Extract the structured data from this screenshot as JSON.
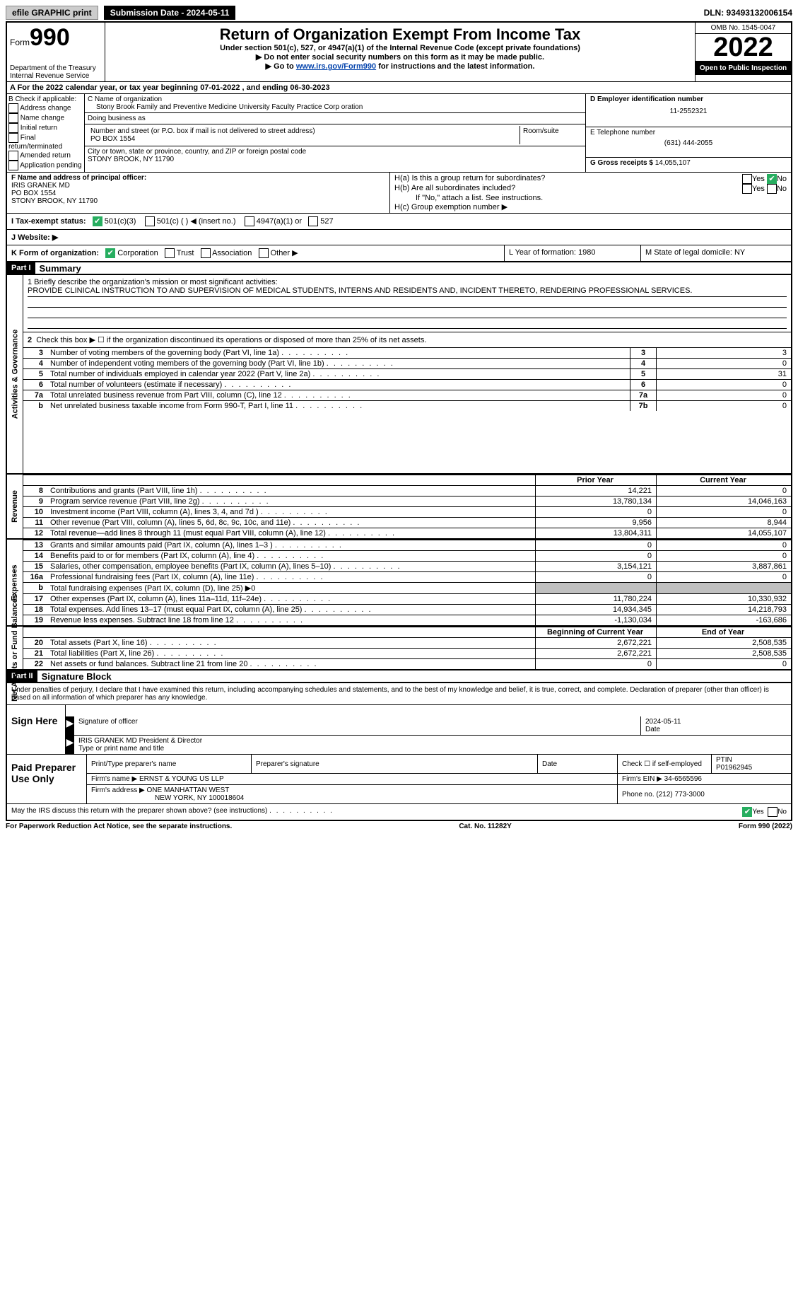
{
  "topbar": {
    "efile": "efile GRAPHIC print",
    "submission": "Submission Date - 2024-05-11",
    "dln": "DLN: 93493132006154"
  },
  "header": {
    "form": "Form",
    "form_no": "990",
    "dept": "Department of the Treasury\nInternal Revenue Service",
    "title": "Return of Organization Exempt From Income Tax",
    "sub": "Under section 501(c), 527, or 4947(a)(1) of the Internal Revenue Code (except private foundations)",
    "note1": "▶ Do not enter social security numbers on this form as it may be made public.",
    "note2_pre": "▶ Go to ",
    "note2_link": "www.irs.gov/Form990",
    "note2_post": " for instructions and the latest information.",
    "omb": "OMB No. 1545-0047",
    "year": "2022",
    "open": "Open to Public Inspection"
  },
  "row_a": "A For the 2022 calendar year, or tax year beginning 07-01-2022    , and ending 06-30-2023",
  "col_b": {
    "label": "B Check if applicable:",
    "items": [
      "Address change",
      "Name change",
      "Initial return",
      "Final return/terminated",
      "Amended return",
      "Application pending"
    ]
  },
  "col_c": {
    "name_label": "C Name of organization",
    "name": "Stony Brook Family and Preventive Medicine University Faculty Practice Corp oration",
    "dba_label": "Doing business as",
    "dba": "",
    "street_label": "Number and street (or P.O. box if mail is not delivered to street address)",
    "room_label": "Room/suite",
    "street": "PO BOX 1554",
    "city_label": "City or town, state or province, country, and ZIP or foreign postal code",
    "city": "STONY BROOK, NY  11790"
  },
  "col_d": {
    "ein_label": "D Employer identification number",
    "ein": "11-2552321",
    "phone_label": "E Telephone number",
    "phone": "(631) 444-2055",
    "gross_label": "G Gross receipts $",
    "gross": "14,055,107"
  },
  "fg": {
    "f_label": "F Name and address of principal officer:",
    "f_name": "IRIS GRANEK MD",
    "f_addr1": "PO BOX 1554",
    "f_addr2": "STONY BROOK, NY  11790",
    "ha": "H(a)  Is this a group return for subordinates?",
    "hb": "H(b)  Are all subordinates included?",
    "hb_note": "If \"No,\" attach a list. See instructions.",
    "hc": "H(c)  Group exemption number ▶",
    "yes": "Yes",
    "no": "No"
  },
  "i": {
    "label": "I  Tax-exempt status:",
    "c3": "501(c)(3)",
    "c": "501(c) (  ) ◀ (insert no.)",
    "a1": "4947(a)(1) or",
    "s527": "527"
  },
  "j": {
    "label": "J  Website: ▶",
    "val": ""
  },
  "k": {
    "label": "K Form of organization:",
    "corp": "Corporation",
    "trust": "Trust",
    "assoc": "Association",
    "other": "Other ▶",
    "l": "L Year of formation: 1980",
    "m": "M State of legal domicile: NY"
  },
  "part1": {
    "label": "Part I",
    "title": "Summary",
    "mission_label": "1  Briefly describe the organization's mission or most significant activities:",
    "mission": "PROVIDE CLINICAL INSTRUCTION TO AND SUPERVISION OF MEDICAL STUDENTS, INTERNS AND RESIDENTS AND, INCIDENT THERETO, RENDERING PROFESSIONAL SERVICES.",
    "line2": "Check this box ▶ ☐ if the organization discontinued its operations or disposed of more than 25% of its net assets.",
    "rows_gov": [
      {
        "n": "3",
        "d": "Number of voting members of the governing body (Part VI, line 1a)",
        "b": "3",
        "v": "3"
      },
      {
        "n": "4",
        "d": "Number of independent voting members of the governing body (Part VI, line 1b)",
        "b": "4",
        "v": "0"
      },
      {
        "n": "5",
        "d": "Total number of individuals employed in calendar year 2022 (Part V, line 2a)",
        "b": "5",
        "v": "31"
      },
      {
        "n": "6",
        "d": "Total number of volunteers (estimate if necessary)",
        "b": "6",
        "v": "0"
      },
      {
        "n": "7a",
        "d": "Total unrelated business revenue from Part VIII, column (C), line 12",
        "b": "7a",
        "v": "0"
      },
      {
        "n": "b",
        "d": "Net unrelated business taxable income from Form 990-T, Part I, line 11",
        "b": "7b",
        "v": "0"
      }
    ],
    "hdr_prior": "Prior Year",
    "hdr_curr": "Current Year",
    "rows_rev": [
      {
        "n": "8",
        "d": "Contributions and grants (Part VIII, line 1h)",
        "p": "14,221",
        "c": "0"
      },
      {
        "n": "9",
        "d": "Program service revenue (Part VIII, line 2g)",
        "p": "13,780,134",
        "c": "14,046,163"
      },
      {
        "n": "10",
        "d": "Investment income (Part VIII, column (A), lines 3, 4, and 7d )",
        "p": "0",
        "c": "0"
      },
      {
        "n": "11",
        "d": "Other revenue (Part VIII, column (A), lines 5, 6d, 8c, 9c, 10c, and 11e)",
        "p": "9,956",
        "c": "8,944"
      },
      {
        "n": "12",
        "d": "Total revenue—add lines 8 through 11 (must equal Part VIII, column (A), line 12)",
        "p": "13,804,311",
        "c": "14,055,107"
      }
    ],
    "rows_exp": [
      {
        "n": "13",
        "d": "Grants and similar amounts paid (Part IX, column (A), lines 1–3 )",
        "p": "0",
        "c": "0"
      },
      {
        "n": "14",
        "d": "Benefits paid to or for members (Part IX, column (A), line 4)",
        "p": "0",
        "c": "0"
      },
      {
        "n": "15",
        "d": "Salaries, other compensation, employee benefits (Part IX, column (A), lines 5–10)",
        "p": "3,154,121",
        "c": "3,887,861"
      },
      {
        "n": "16a",
        "d": "Professional fundraising fees (Part IX, column (A), line 11e)",
        "p": "0",
        "c": "0"
      },
      {
        "n": "b",
        "d": "Total fundraising expenses (Part IX, column (D), line 25) ▶0",
        "p": "",
        "c": "",
        "gray": true
      },
      {
        "n": "17",
        "d": "Other expenses (Part IX, column (A), lines 11a–11d, 11f–24e)",
        "p": "11,780,224",
        "c": "10,330,932"
      },
      {
        "n": "18",
        "d": "Total expenses. Add lines 13–17 (must equal Part IX, column (A), line 25)",
        "p": "14,934,345",
        "c": "14,218,793"
      },
      {
        "n": "19",
        "d": "Revenue less expenses. Subtract line 18 from line 12",
        "p": "-1,130,034",
        "c": "-163,686"
      }
    ],
    "hdr_beg": "Beginning of Current Year",
    "hdr_end": "End of Year",
    "rows_net": [
      {
        "n": "20",
        "d": "Total assets (Part X, line 16)",
        "p": "2,672,221",
        "c": "2,508,535"
      },
      {
        "n": "21",
        "d": "Total liabilities (Part X, line 26)",
        "p": "2,672,221",
        "c": "2,508,535"
      },
      {
        "n": "22",
        "d": "Net assets or fund balances. Subtract line 21 from line 20",
        "p": "0",
        "c": "0"
      }
    ],
    "vlabel_gov": "Activities & Governance",
    "vlabel_rev": "Revenue",
    "vlabel_exp": "Expenses",
    "vlabel_net": "Net Assets or Fund Balances"
  },
  "part2": {
    "label": "Part II",
    "title": "Signature Block",
    "decl": "Under penalties of perjury, I declare that I have examined this return, including accompanying schedules and statements, and to the best of my knowledge and belief, it is true, correct, and complete. Declaration of preparer (other than officer) is based on all information of which preparer has any knowledge.",
    "sign_here": "Sign Here",
    "sig_officer": "Signature of officer",
    "sig_date": "2024-05-11",
    "date": "Date",
    "officer_name": "IRIS GRANEK MD  President & Director",
    "type_name": "Type or print name and title",
    "paid": "Paid Preparer Use Only",
    "prep_name_label": "Print/Type preparer's name",
    "prep_sig_label": "Preparer's signature",
    "check_se": "Check ☐ if self-employed",
    "ptin_label": "PTIN",
    "ptin": "P01962945",
    "firm_name_label": "Firm's name     ▶",
    "firm_name": "ERNST & YOUNG US LLP",
    "firm_ein_label": "Firm's EIN ▶",
    "firm_ein": "34-6565596",
    "firm_addr_label": "Firm's address ▶",
    "firm_addr1": "ONE MANHATTAN WEST",
    "firm_addr2": "NEW YORK, NY  100018604",
    "firm_phone_label": "Phone no.",
    "firm_phone": "(212) 773-3000",
    "discuss": "May the IRS discuss this return with the preparer shown above? (see instructions)"
  },
  "footer": {
    "left": "For Paperwork Reduction Act Notice, see the separate instructions.",
    "mid": "Cat. No. 11282Y",
    "right": "Form 990 (2022)"
  }
}
